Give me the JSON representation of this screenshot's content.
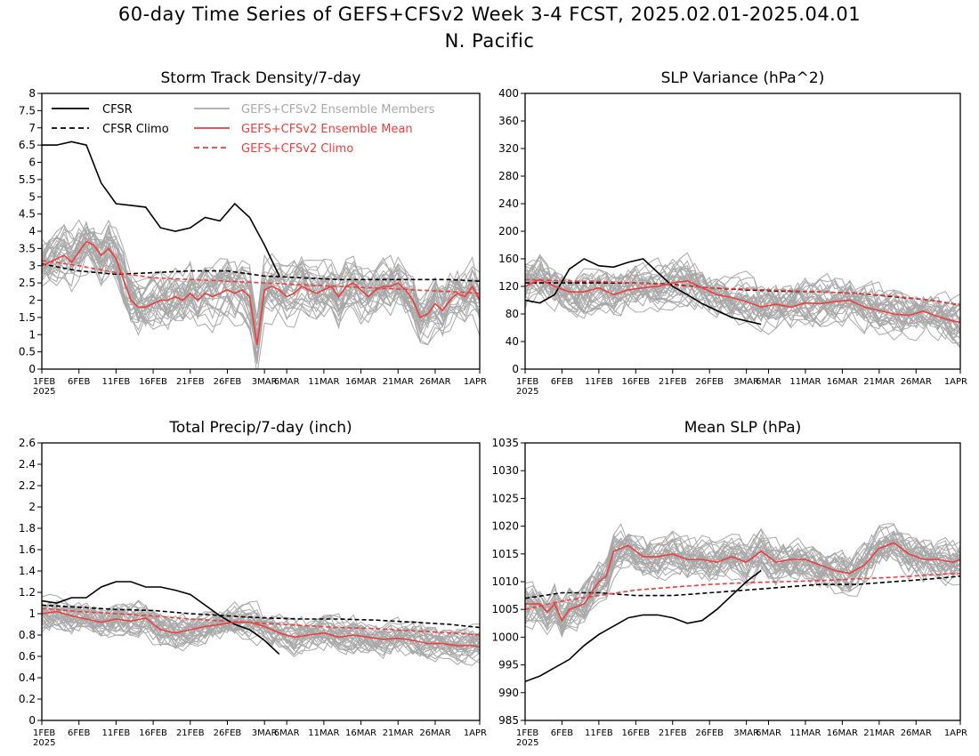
{
  "figure": {
    "title_line1": "60-day Time Series of GEFS+CFSv2 Week 3-4 FCST, 2025.02.01-2025.04.01",
    "title_line2": "N. Pacific",
    "x_tick_labels": [
      "1FEB",
      "6FEB",
      "11FEB",
      "16FEB",
      "21FEB",
      "26FEB",
      "3MAR",
      "6MAR",
      "11MAR",
      "16MAR",
      "21MAR",
      "26MAR",
      "1APR"
    ],
    "x_year_label": "2025"
  },
  "legend": {
    "cfsr": "CFSR",
    "cfsr_climo": "CFSR Climo",
    "members": "GEFS+CFSv2 Ensemble Members",
    "ens_mean": "GEFS+CFSv2 Ensemble Mean",
    "gefs_climo": "GEFS+CFSv2 Climo"
  },
  "colors": {
    "cfsr": "#000000",
    "members": "#a8a8a8",
    "ens_mean": "#f03c3c",
    "gefs_climo": "#f03c3c"
  },
  "chart_data": [
    {
      "type": "line",
      "title": "Storm Track Density/7-day",
      "ylim": [
        0,
        8
      ],
      "yticks": [
        "0",
        "0.5",
        "1",
        "1.5",
        "2",
        "2.5",
        "3",
        "3.5",
        "4",
        "4.5",
        "5",
        "5.5",
        "6",
        "6.5",
        "7",
        "7.5",
        "8"
      ],
      "x_range_days": [
        0,
        59
      ],
      "series": [
        {
          "name": "CFSR",
          "style": "solid",
          "color": "#000000",
          "x": [
            0,
            2,
            4,
            6,
            8,
            10,
            12,
            14,
            16,
            18,
            20,
            22,
            24,
            26,
            28,
            30,
            32
          ],
          "y": [
            6.5,
            6.5,
            6.6,
            6.5,
            5.4,
            4.8,
            4.75,
            4.7,
            4.1,
            4.0,
            4.1,
            4.4,
            4.3,
            4.8,
            4.4,
            3.6,
            2.7
          ]
        },
        {
          "name": "CFSR Climo",
          "style": "dashed",
          "color": "#000000",
          "x": [
            0,
            5,
            10,
            15,
            20,
            25,
            30,
            35,
            40,
            45,
            50,
            55,
            59
          ],
          "y": [
            3.05,
            2.85,
            2.75,
            2.8,
            2.85,
            2.85,
            2.7,
            2.65,
            2.6,
            2.6,
            2.6,
            2.6,
            2.55
          ]
        },
        {
          "name": "GEFS+CFSv2 Ensemble Mean",
          "style": "solid",
          "color": "#f03c3c",
          "x": [
            0,
            2,
            3,
            4,
            5,
            6,
            7,
            8,
            9,
            10,
            11,
            12,
            13,
            14,
            15,
            16,
            17,
            18,
            19,
            20,
            21,
            22,
            23,
            24,
            25,
            26,
            27,
            28,
            29,
            30,
            31,
            32,
            33,
            34,
            35,
            36,
            37,
            38,
            39,
            40,
            41,
            42,
            43,
            44,
            45,
            46,
            47,
            48,
            49,
            50,
            51,
            52,
            53,
            54,
            55,
            56,
            57,
            58,
            59
          ],
          "y": [
            3.0,
            3.2,
            3.3,
            3.1,
            3.4,
            3.7,
            3.6,
            3.3,
            3.5,
            3.2,
            2.6,
            2.0,
            1.8,
            1.8,
            1.9,
            2.0,
            2.0,
            2.1,
            2.0,
            2.2,
            2.0,
            2.2,
            2.1,
            2.2,
            2.3,
            2.2,
            2.3,
            2.1,
            0.7,
            2.3,
            2.4,
            2.3,
            2.1,
            2.2,
            2.4,
            2.3,
            2.2,
            2.3,
            2.4,
            2.1,
            2.4,
            2.5,
            2.3,
            2.1,
            2.3,
            2.4,
            2.4,
            2.5,
            2.3,
            2.0,
            1.5,
            1.6,
            1.9,
            1.7,
            2.0,
            2.2,
            2.1,
            2.4,
            2.0
          ]
        },
        {
          "name": "GEFS+CFSv2 Climo",
          "style": "dashed",
          "color": "#f03c3c",
          "x": [
            0,
            5,
            10,
            15,
            20,
            25,
            30,
            35,
            40,
            45,
            50,
            55,
            59
          ],
          "y": [
            3.15,
            3.0,
            2.8,
            2.65,
            2.6,
            2.55,
            2.5,
            2.45,
            2.4,
            2.35,
            2.3,
            2.25,
            2.2
          ]
        }
      ],
      "members_band": {
        "center": "ensemble_mean",
        "spread": 1.2,
        "count": 30
      }
    },
    {
      "type": "line",
      "title": "SLP Variance (hPa^2)",
      "ylim": [
        0,
        400
      ],
      "yticks": [
        "0",
        "40",
        "80",
        "120",
        "160",
        "200",
        "240",
        "280",
        "320",
        "360",
        "400"
      ],
      "x_range_days": [
        0,
        59
      ],
      "series": [
        {
          "name": "CFSR",
          "style": "solid",
          "color": "#000000",
          "x": [
            0,
            2,
            4,
            6,
            8,
            10,
            12,
            14,
            16,
            18,
            20,
            22,
            24,
            26,
            28,
            30,
            32
          ],
          "y": [
            100,
            96,
            108,
            145,
            160,
            150,
            148,
            155,
            160,
            140,
            120,
            108,
            95,
            85,
            75,
            70,
            65
          ]
        },
        {
          "name": "CFSR Climo",
          "style": "dashed",
          "color": "#000000",
          "x": [
            0,
            5,
            10,
            15,
            20,
            25,
            30,
            35,
            40,
            45,
            50,
            55,
            59
          ],
          "y": [
            125,
            125,
            125,
            125,
            123,
            118,
            115,
            113,
            112,
            110,
            105,
            100,
            93
          ]
        },
        {
          "name": "GEFS+CFSv2 Ensemble Mean",
          "style": "solid",
          "color": "#f03c3c",
          "x": [
            0,
            2,
            4,
            6,
            8,
            10,
            12,
            14,
            16,
            18,
            20,
            22,
            24,
            26,
            28,
            30,
            32,
            34,
            36,
            38,
            40,
            42,
            44,
            46,
            48,
            50,
            52,
            54,
            56,
            58,
            59
          ],
          "y": [
            120,
            130,
            120,
            112,
            112,
            118,
            108,
            115,
            118,
            120,
            125,
            128,
            118,
            108,
            104,
            98,
            90,
            94,
            90,
            96,
            95,
            98,
            100,
            90,
            85,
            80,
            78,
            84,
            76,
            70,
            68
          ]
        },
        {
          "name": "GEFS+CFSv2 Climo",
          "style": "dashed",
          "color": "#f03c3c",
          "x": [
            0,
            5,
            10,
            15,
            20,
            25,
            30,
            35,
            40,
            45,
            50,
            55,
            59
          ],
          "y": [
            130,
            128,
            127,
            125,
            122,
            118,
            116,
            114,
            112,
            110,
            106,
            100,
            93
          ]
        }
      ],
      "members_band": {
        "center": "ensemble_mean",
        "spread": 50,
        "count": 30
      }
    },
    {
      "type": "line",
      "title": "Total Precip/7-day (inch)",
      "ylim": [
        0,
        2.6
      ],
      "yticks": [
        "0",
        "0.2",
        "0.4",
        "0.6",
        "0.8",
        "1",
        "1.2",
        "1.4",
        "1.6",
        "1.8",
        "2",
        "2.2",
        "2.4",
        "2.6"
      ],
      "x_range_days": [
        0,
        59
      ],
      "series": [
        {
          "name": "CFSR",
          "style": "solid",
          "color": "#000000",
          "x": [
            0,
            2,
            4,
            6,
            8,
            10,
            12,
            14,
            16,
            18,
            20,
            22,
            24,
            26,
            28,
            30,
            32
          ],
          "y": [
            1.12,
            1.1,
            1.15,
            1.15,
            1.25,
            1.3,
            1.3,
            1.25,
            1.25,
            1.22,
            1.18,
            1.08,
            0.98,
            0.9,
            0.85,
            0.75,
            0.62
          ]
        },
        {
          "name": "CFSR Climo",
          "style": "dashed",
          "color": "#000000",
          "x": [
            0,
            5,
            10,
            15,
            20,
            25,
            30,
            35,
            40,
            45,
            50,
            55,
            59
          ],
          "y": [
            1.08,
            1.06,
            1.04,
            1.03,
            1.0,
            0.98,
            0.96,
            0.95,
            0.95,
            0.94,
            0.92,
            0.9,
            0.87
          ]
        },
        {
          "name": "GEFS+CFSv2 Ensemble Mean",
          "style": "solid",
          "color": "#f03c3c",
          "x": [
            0,
            2,
            4,
            6,
            8,
            10,
            12,
            14,
            16,
            18,
            20,
            22,
            24,
            26,
            28,
            30,
            32,
            34,
            36,
            38,
            40,
            42,
            44,
            46,
            48,
            50,
            52,
            54,
            56,
            58,
            59
          ],
          "y": [
            1.0,
            1.02,
            0.98,
            0.95,
            0.92,
            0.95,
            0.93,
            0.96,
            0.85,
            0.82,
            0.85,
            0.88,
            0.9,
            0.92,
            0.92,
            0.88,
            0.82,
            0.78,
            0.8,
            0.82,
            0.78,
            0.8,
            0.78,
            0.76,
            0.77,
            0.75,
            0.72,
            0.72,
            0.7,
            0.7,
            0.69
          ]
        },
        {
          "name": "GEFS+CFSv2 Climo",
          "style": "dashed",
          "color": "#f03c3c",
          "x": [
            0,
            5,
            10,
            15,
            20,
            25,
            30,
            35,
            40,
            45,
            50,
            55,
            59
          ],
          "y": [
            1.05,
            1.02,
            1.0,
            0.98,
            0.95,
            0.93,
            0.91,
            0.89,
            0.87,
            0.86,
            0.84,
            0.82,
            0.8
          ]
        }
      ],
      "members_band": {
        "center": "ensemble_mean",
        "spread": 0.25,
        "count": 30
      }
    },
    {
      "type": "line",
      "title": "Mean SLP (hPa)",
      "ylim": [
        985,
        1035
      ],
      "yticks": [
        "985",
        "990",
        "995",
        "1000",
        "1005",
        "1010",
        "1015",
        "1020",
        "1025",
        "1030",
        "1035"
      ],
      "x_range_days": [
        0,
        59
      ],
      "series": [
        {
          "name": "CFSR",
          "style": "solid",
          "color": "#000000",
          "x": [
            0,
            2,
            4,
            6,
            8,
            10,
            12,
            14,
            16,
            18,
            20,
            22,
            24,
            26,
            28,
            30,
            32
          ],
          "y": [
            992,
            993,
            994.5,
            996,
            998.5,
            1000.5,
            1002,
            1003.5,
            1004,
            1004,
            1003.5,
            1002.5,
            1003,
            1005,
            1007.5,
            1010,
            1012
          ]
        },
        {
          "name": "CFSR Climo",
          "style": "dashed",
          "color": "#000000",
          "x": [
            0,
            5,
            10,
            15,
            20,
            25,
            30,
            35,
            40,
            45,
            50,
            55,
            59
          ],
          "y": [
            1007,
            1008,
            1008,
            1007.5,
            1007.5,
            1008,
            1008.5,
            1009,
            1009.5,
            1009.5,
            1010,
            1010.5,
            1011
          ]
        },
        {
          "name": "GEFS+CFSv2 Ensemble Mean",
          "style": "solid",
          "color": "#f03c3c",
          "x": [
            0,
            2,
            3,
            4,
            5,
            6,
            8,
            10,
            11,
            12,
            14,
            16,
            18,
            20,
            22,
            24,
            26,
            28,
            30,
            32,
            34,
            36,
            38,
            40,
            42,
            44,
            46,
            48,
            50,
            52,
            54,
            56,
            58,
            59
          ],
          "y": [
            1006,
            1006,
            1004.5,
            1006,
            1003,
            1005,
            1006,
            1010,
            1011,
            1015.5,
            1016.5,
            1014.5,
            1014.5,
            1015,
            1014,
            1014,
            1013.5,
            1014.5,
            1013.5,
            1015.5,
            1013.5,
            1014,
            1014,
            1013,
            1012,
            1011.5,
            1013,
            1016,
            1017,
            1015,
            1014,
            1014,
            1013.5,
            1014
          ]
        },
        {
          "name": "GEFS+CFSv2 Climo",
          "style": "dashed",
          "color": "#f03c3c",
          "x": [
            0,
            5,
            10,
            15,
            20,
            25,
            30,
            35,
            40,
            45,
            50,
            55,
            59
          ],
          "y": [
            1005,
            1006.5,
            1007.5,
            1008.5,
            1009,
            1009.5,
            1009.8,
            1010,
            1010.2,
            1010.5,
            1010.8,
            1011.2,
            1011.5
          ]
        }
      ],
      "members_band": {
        "center": "ensemble_mean",
        "spread": 6,
        "count": 30
      }
    }
  ]
}
